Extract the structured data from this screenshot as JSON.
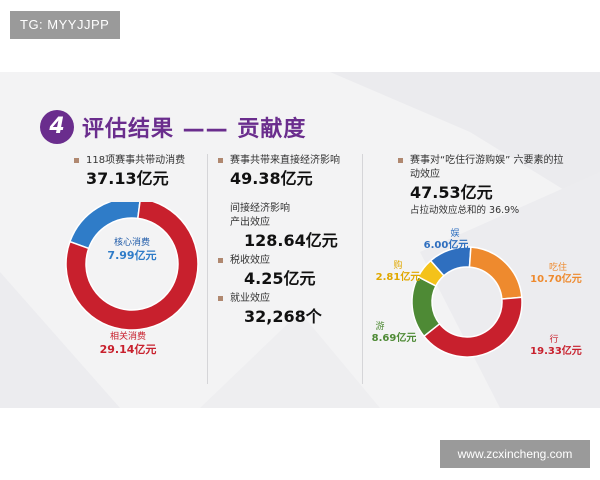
{
  "tag_top": "TG: MYYJJPP",
  "tag_bottom": "www.zcxincheng.com",
  "header": {
    "number": "4",
    "title": "评估结果 —— 贡献度"
  },
  "col1": {
    "item_label": "118项赛事共带动消费",
    "total": "37.13亿元",
    "inner_label": "核心消费",
    "inner_value": "7.99亿元",
    "outer_label": "相关消费",
    "outer_value": "29.14亿元"
  },
  "col2": {
    "item_label": "赛事共带来直接经济影响",
    "direct_value": "49.38亿元",
    "indirect_title": "间接经济影响",
    "output_label": "产出效应",
    "output_value": "128.64亿元",
    "tax_label": "税收效应",
    "tax_value": "4.25亿元",
    "job_label": "就业效应",
    "job_value": "32,268个"
  },
  "col3": {
    "item_label_line1": "赛事对“吃住行游购娱” 六要素的拉",
    "item_label_line2": "动效应",
    "total": "47.53亿元",
    "share_text": "占拉动效应总和的 36.9%",
    "segments": [
      {
        "name": "娱",
        "value": "6.00亿元",
        "color": "#2f6fbf"
      },
      {
        "name": "吃住",
        "value": "10.70亿元",
        "color": "#ee8a2e"
      },
      {
        "name": "行",
        "value": "19.33亿元",
        "color": "#c8202d"
      },
      {
        "name": "游",
        "value": "8.69亿元",
        "color": "#4e8a35"
      },
      {
        "name": "购",
        "value": "2.81亿元",
        "color": "#f4c21a"
      }
    ]
  },
  "colors": {
    "accent": "#6a2d8d",
    "red": "#c8202d",
    "blue": "#2f7cc8"
  },
  "chart_data": [
    {
      "type": "pie",
      "categories": [
        "核心消费",
        "相关消费"
      ],
      "values": [
        7.99,
        29.14
      ]
    },
    {
      "type": "pie",
      "categories": [
        "娱",
        "吃住",
        "行",
        "游",
        "购"
      ],
      "values": [
        6.0,
        10.7,
        19.33,
        8.69,
        2.81
      ]
    }
  ]
}
